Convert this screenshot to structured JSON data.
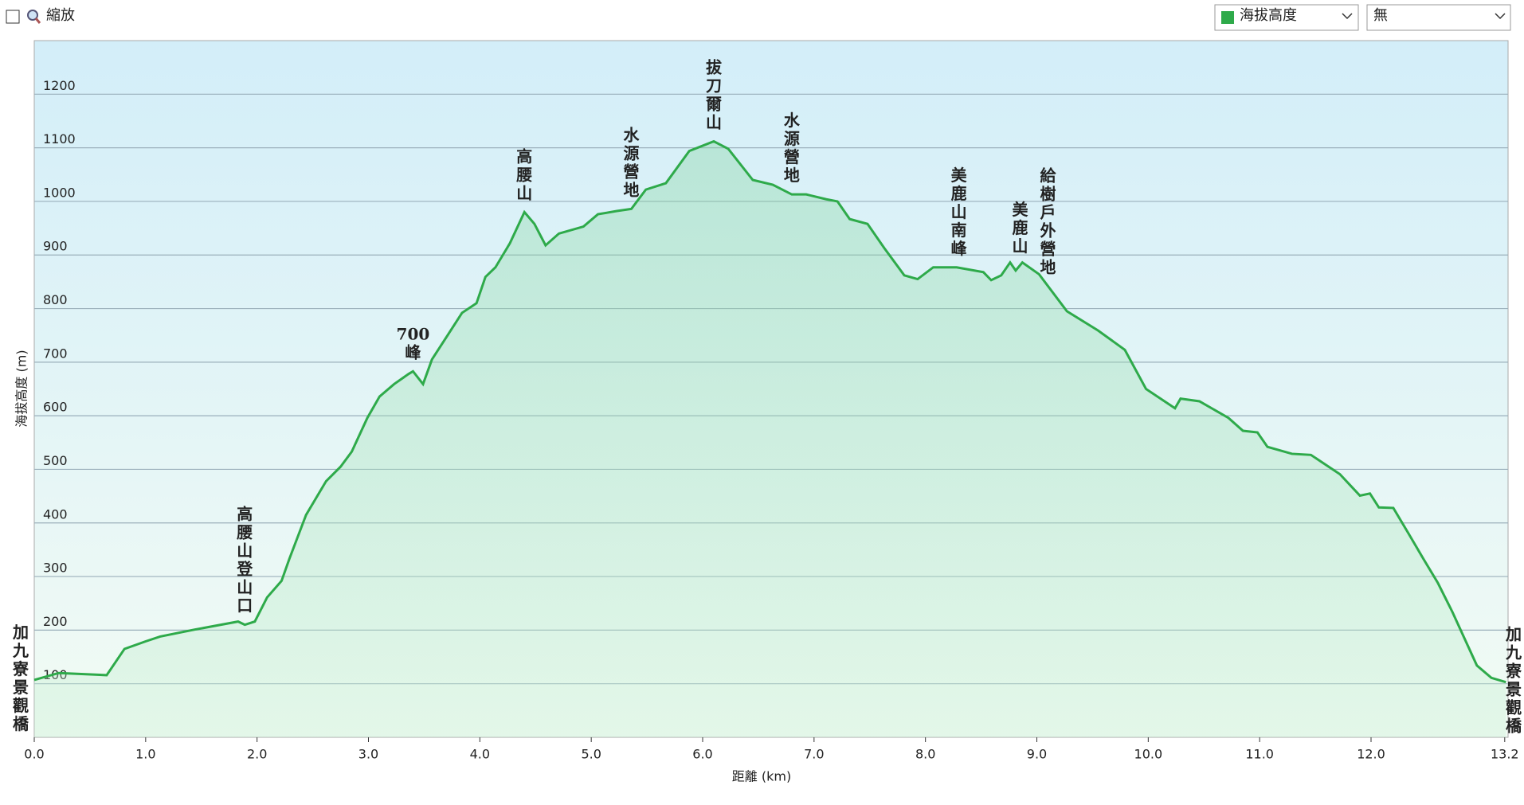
{
  "ui": {
    "zoom_label": "縮放",
    "secondary": "無"
  },
  "chart_data": {
    "type": "line",
    "x_label": "距離 (km)",
    "y_label": "海拔高度 (m)",
    "x": [
      0,
      0.22,
      0.65,
      0.81,
      1.0,
      1.13,
      1.44,
      1.83,
      1.89,
      1.98,
      2.09,
      2.22,
      2.29,
      2.44,
      2.62,
      2.75,
      2.85,
      2.99,
      3.1,
      3.23,
      3.36,
      3.4,
      3.49,
      3.57,
      3.71,
      3.84,
      3.97,
      4.05,
      4.14,
      4.27,
      4.4,
      4.49,
      4.59,
      4.71,
      4.93,
      5.06,
      5.23,
      5.36,
      5.49,
      5.67,
      5.88,
      6.1,
      6.23,
      6.45,
      6.63,
      6.8,
      6.93,
      7.11,
      7.21,
      7.32,
      7.48,
      7.63,
      7.81,
      7.93,
      8.07,
      8.28,
      8.52,
      8.59,
      8.68,
      8.76,
      8.81,
      8.87,
      9.02,
      9.27,
      9.55,
      9.79,
      9.98,
      10.24,
      10.29,
      10.46,
      10.72,
      10.85,
      10.98,
      11.07,
      11.29,
      11.46,
      11.72,
      11.9,
      11.99,
      12.07,
      12.2,
      12.34,
      12.47,
      12.6,
      12.73,
      12.95,
      13.08,
      13.21
    ],
    "series": [
      {
        "name": "海拔高度",
        "color": "#2eaa4a",
        "values": [
          107,
          120,
          116,
          165,
          179,
          188,
          201,
          216,
          210,
          216,
          261,
          292,
          333,
          415,
          478,
          505,
          533,
          596,
          636,
          659,
          678,
          683,
          659,
          705,
          750,
          792,
          810,
          859,
          877,
          922,
          980,
          958,
          918,
          940,
          953,
          976,
          982,
          986,
          1022,
          1034,
          1094,
          1112,
          1098,
          1040,
          1031,
          1013,
          1013,
          1004,
          1000,
          967,
          958,
          913,
          862,
          855,
          877,
          877,
          868,
          853,
          862,
          886,
          871,
          886,
          864,
          795,
          759,
          723,
          650,
          614,
          632,
          627,
          596,
          572,
          569,
          542,
          529,
          527,
          491,
          451,
          455,
          429,
          428,
          379,
          333,
          288,
          234,
          134,
          111,
          103
        ]
      }
    ],
    "annotations": [
      {
        "text": "加九寮景觀橋",
        "x": 0
      },
      {
        "text": "高腰山登山口",
        "x": 1.89
      },
      {
        "text": "700峰",
        "x": 3.4
      },
      {
        "text": "高腰山",
        "x": 4.4
      },
      {
        "text": "水源營地",
        "x": 5.36
      },
      {
        "text": "拔刀爾山",
        "x": 6.1
      },
      {
        "text": "水源營地",
        "x": 6.8
      },
      {
        "text": "美鹿山南峰",
        "x": 8.3
      },
      {
        "text": "美鹿山",
        "x": 8.85
      },
      {
        "text": "給樹戶外營地",
        "x": 9.1
      },
      {
        "text": "加九寮景觀橋",
        "x": 13.23
      }
    ],
    "xlim": [
      0,
      13.23
    ],
    "ylim": [
      0,
      1300
    ],
    "xticks": [
      {
        "value": 0,
        "label": "0.0"
      },
      {
        "value": 1,
        "label": "1.0"
      },
      {
        "value": 2,
        "label": "2.0"
      },
      {
        "value": 3,
        "label": "3.0"
      },
      {
        "value": 4,
        "label": "4.0"
      },
      {
        "value": 5,
        "label": "5.0"
      },
      {
        "value": 6,
        "label": "6.0"
      },
      {
        "value": 7,
        "label": "7.0"
      },
      {
        "value": 8,
        "label": "8.0"
      },
      {
        "value": 9,
        "label": "9.0"
      },
      {
        "value": 10,
        "label": "10.0"
      },
      {
        "value": 11,
        "label": "11.0"
      },
      {
        "value": 12,
        "label": "12.0"
      },
      13.2
    ],
    "yticks": [
      100,
      200,
      300,
      400,
      500,
      600,
      700,
      800,
      900,
      1000,
      1100,
      1200
    ],
    "grid": true,
    "annotation_color": "#e8141b"
  }
}
